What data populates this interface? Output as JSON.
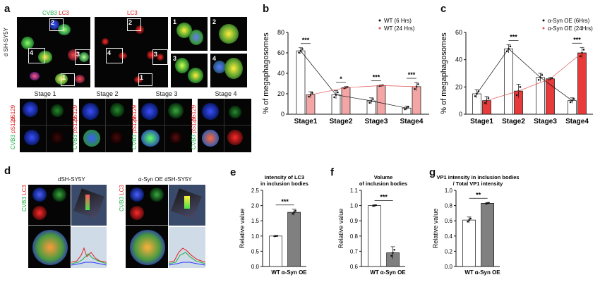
{
  "panel_labels": [
    "a",
    "b",
    "c",
    "d",
    "e",
    "f",
    "g"
  ],
  "panel_a": {
    "channel_merge": "CVB3",
    "channel_red": "LC3",
    "side_label": "d SH-SY5Y",
    "box_numbers": [
      "1",
      "2",
      "3",
      "4"
    ],
    "stages": [
      "Stage 1",
      "Stage 2",
      "Stage 3",
      "Stage 4"
    ],
    "row_labels": {
      "cvb3": "CVB3",
      "ps129": "pS129"
    }
  },
  "panel_d": {
    "left_title": "dSH-SY5Y",
    "right_title": "α-Syn OE dSH-SY5Y",
    "label_cvb3": "CVB3",
    "label_lc3": "LC3"
  },
  "colors": {
    "white_bar": "#ffffff",
    "red_bar": "#e83a3a",
    "pink_bar": "#f4a6a6",
    "grey_bar": "#808080",
    "black": "#111111",
    "red_line": "#e05050"
  },
  "chart_data": [
    {
      "id": "b",
      "type": "bar",
      "ylabel": "% of megaphagosomes",
      "categories": [
        "Stage1",
        "Stage2",
        "Stage3",
        "Stage4"
      ],
      "ylim": [
        0,
        80
      ],
      "yticks": [
        0,
        20,
        40,
        60,
        80
      ],
      "series": [
        {
          "name": "WT (6 Hrs)",
          "values": [
            62,
            19,
            13,
            6
          ],
          "errors": [
            3,
            4,
            3,
            2
          ]
        },
        {
          "name": "WT (24 Hrs)",
          "values": [
            19,
            26,
            28,
            27
          ],
          "errors": [
            3,
            1,
            0.5,
            4
          ]
        }
      ],
      "significance": [
        "***",
        "*",
        "***",
        "***"
      ],
      "legend": "top-right"
    },
    {
      "id": "c",
      "type": "bar",
      "ylabel": "% of megaphagosomes",
      "categories": [
        "Stage1",
        "Stage2",
        "Stage3",
        "Stage4"
      ],
      "ylim": [
        0,
        60
      ],
      "yticks": [
        0,
        20,
        40,
        60
      ],
      "series": [
        {
          "name": "α-Syn OE (6Hrs)",
          "values": [
            15,
            48,
            27,
            10
          ],
          "errors": [
            3,
            3,
            3,
            2
          ]
        },
        {
          "name": "α-Syn OE (24Hrs)",
          "values": [
            10,
            17,
            26,
            45
          ],
          "errors": [
            3,
            5,
            1,
            4
          ]
        }
      ],
      "significance": [
        "",
        "***",
        "",
        "***"
      ],
      "legend": "top-right"
    },
    {
      "id": "e",
      "type": "bar",
      "title": "Intensity of LC3\nin inclusion bodies",
      "ylabel": "Relative value",
      "categories": [
        "WT",
        "α-Syn OE"
      ],
      "values": [
        1.0,
        1.78
      ],
      "errors": [
        0.01,
        0.1
      ],
      "ylim": [
        0,
        2.5
      ],
      "yticks": [
        0.0,
        0.5,
        1.0,
        1.5,
        2.0,
        2.5
      ],
      "significance": "***"
    },
    {
      "id": "f",
      "type": "bar",
      "title": "Volume\nof inclusion bodies",
      "ylabel": "Relative value",
      "categories": [
        "WT",
        "α-Syn OE"
      ],
      "values": [
        1.0,
        0.69
      ],
      "errors": [
        0.005,
        0.04
      ],
      "ylim": [
        0.6,
        1.1
      ],
      "yticks": [
        0.6,
        0.7,
        0.8,
        0.9,
        1.0,
        1.1
      ],
      "significance": "***"
    },
    {
      "id": "g",
      "type": "bar",
      "title": "VP1 intensity in inclusion bodies\n/ Total VP1 intensity",
      "ylabel": "Relative value",
      "categories": [
        "WT",
        "α-Syn OE"
      ],
      "values": [
        0.61,
        0.83
      ],
      "errors": [
        0.04,
        0.01
      ],
      "ylim": [
        0.0,
        1.0
      ],
      "yticks": [
        0.0,
        0.2,
        0.4,
        0.6,
        0.8,
        1.0
      ],
      "significance": "**"
    }
  ]
}
